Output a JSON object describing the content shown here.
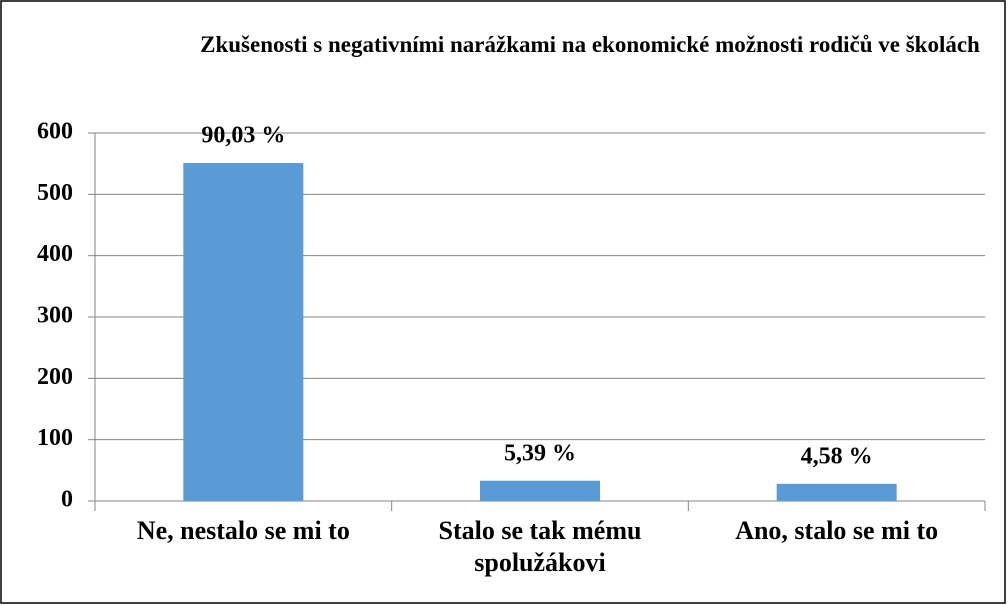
{
  "chart_data": {
    "type": "bar",
    "title": "Zkušenosti s negativními narážkami na ekonomické možnosti rodičů ve školách",
    "categories": [
      "Ne, nestalo se mi to",
      "Stalo se tak mému spolužákovi",
      "Ano, stalo se mi to"
    ],
    "values": [
      551,
      33,
      28
    ],
    "annotations": [
      "90,03 %",
      "5,39 %",
      "4,58 %"
    ],
    "color": "#5b9bd5",
    "ylim": [
      0,
      600
    ],
    "yticks": [
      0,
      100,
      200,
      300,
      400,
      500,
      600
    ],
    "grid": true
  }
}
